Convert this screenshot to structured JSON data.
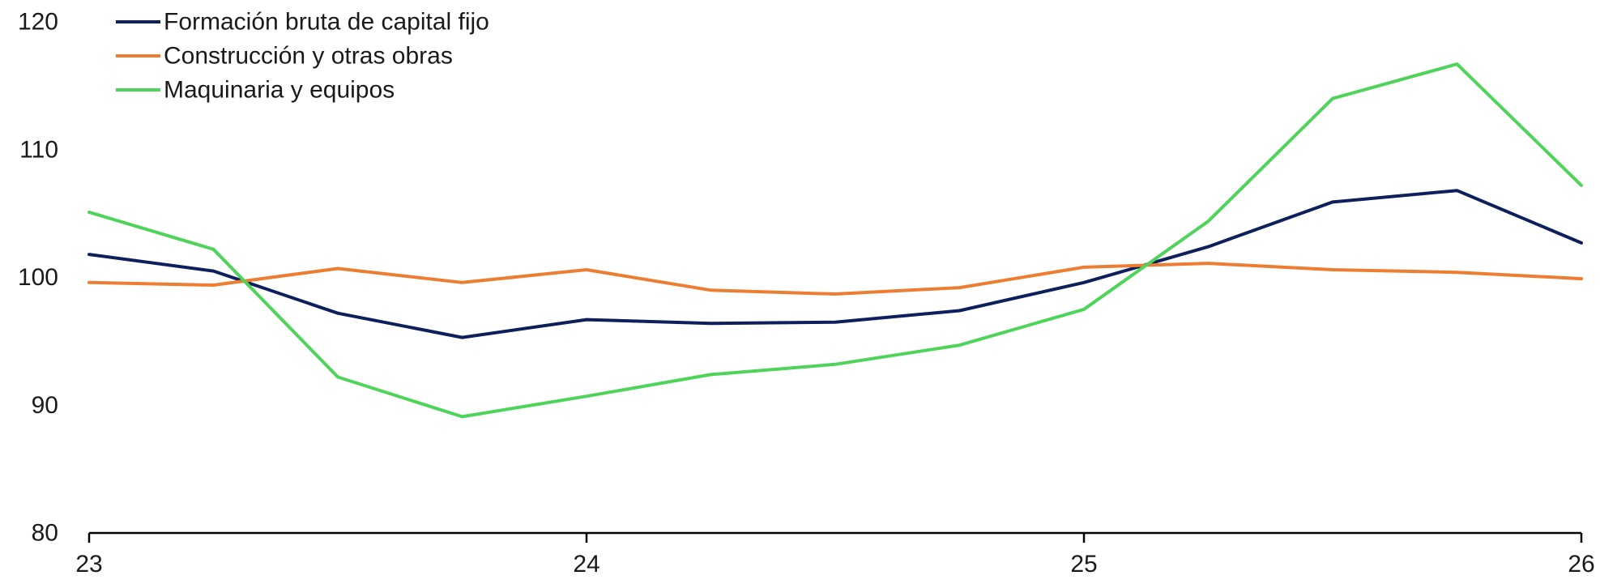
{
  "chart_data": {
    "type": "line",
    "title": "",
    "xlabel": "",
    "ylabel": "",
    "x": [
      23,
      23.25,
      23.5,
      23.75,
      24,
      24.25,
      24.5,
      24.75,
      25,
      25.25,
      25.5,
      25.75,
      26
    ],
    "xlim": [
      23,
      26
    ],
    "ylim": [
      80,
      120
    ],
    "x_ticks": [
      "23",
      "24",
      "25",
      "26"
    ],
    "y_ticks": [
      "80",
      "90",
      "100",
      "110",
      "120"
    ],
    "grid": false,
    "legend_position": "top-left",
    "series": [
      {
        "name": "Formación bruta de capital fijo",
        "color": "#0d1f5c",
        "values": [
          101.8,
          100.5,
          97.2,
          95.3,
          96.7,
          96.4,
          96.5,
          97.4,
          99.6,
          102.4,
          105.9,
          106.8,
          102.7
        ]
      },
      {
        "name": "Construcción y otras obras",
        "color": "#ed7d31",
        "values": [
          99.6,
          99.4,
          100.7,
          99.6,
          100.6,
          99.0,
          98.7,
          99.2,
          100.8,
          101.1,
          100.6,
          100.4,
          99.9
        ]
      },
      {
        "name": "Maquinaria y equipos",
        "color": "#4fd45a",
        "values": [
          105.1,
          102.2,
          92.2,
          89.1,
          90.7,
          92.4,
          93.2,
          94.7,
          97.5,
          104.4,
          114.0,
          116.7,
          107.2
        ]
      }
    ]
  }
}
